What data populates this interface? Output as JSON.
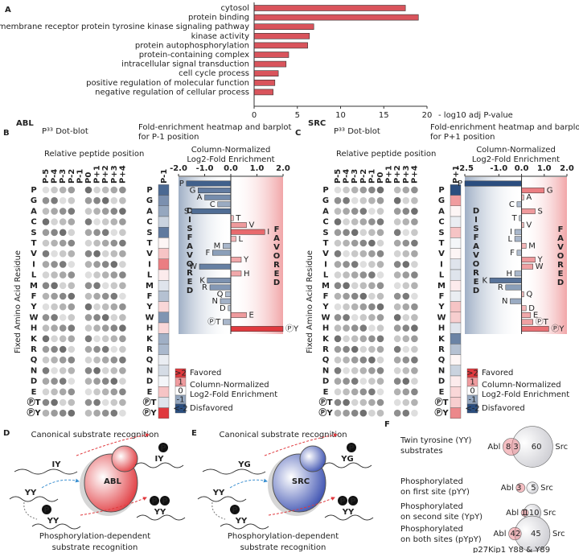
{
  "panel_labels": [
    "A",
    "B",
    "C",
    "D",
    "E",
    "F"
  ],
  "chart_data": [
    {
      "type": "bar",
      "orientation": "horizontal",
      "categories": [
        "cytosol",
        "protein binding",
        "transmembrane receptor protein tyrosine kinase signaling pathway",
        "kinase activity",
        "protein autophosphorylation",
        "protein-containing complex",
        "intracellular signal transduction",
        "cell cycle process",
        "positive regulation of molecular function",
        "negative regulation of cellular process"
      ],
      "values": [
        17.5,
        19.0,
        6.9,
        6.4,
        6.2,
        4.0,
        3.7,
        2.8,
        2.4,
        2.2
      ],
      "color": "#d9545c",
      "xlim": [
        0,
        20
      ],
      "xticks": [
        0,
        5,
        10,
        15,
        20
      ],
      "xlabel": "- log10 adj P-value"
    },
    {
      "type": "enrichment",
      "kinase": "ABL",
      "blot_title": "P³³ Dot-blot",
      "blot_xlabel": "Relative peptide position",
      "blot_ylabel": "Fixed Amino Acid Residue",
      "positions": [
        "P-5",
        "P-4",
        "P-3",
        "P-2",
        "P-1",
        "P0",
        "P+1",
        "P+2",
        "P+3",
        "P+4"
      ],
      "heatmap_title": [
        "Fold-enrichment heatmap and barplot",
        "for P-1 position"
      ],
      "heatmap_column": "P-1",
      "xlabel": [
        "Column-Normalized",
        "Log2-Fold Enrichment"
      ],
      "categories": [
        "P",
        "G",
        "A",
        "C",
        "S",
        "T",
        "V",
        "I",
        "L",
        "M",
        "F",
        "Y",
        "W",
        "H",
        "K",
        "R",
        "Q",
        "N",
        "D",
        "E",
        "ⓅT",
        "ⓅY"
      ],
      "values": [
        -1.7,
        -1.25,
        -1.0,
        -0.5,
        -1.5,
        0.1,
        0.6,
        1.3,
        0.2,
        -0.3,
        -0.7,
        0.4,
        -1.2,
        0.4,
        -0.9,
        -0.8,
        -0.2,
        -0.4,
        -0.1,
        0.6,
        -0.3,
        2.0
      ],
      "xlim": [
        -2,
        2
      ],
      "xticks": [
        {
          "value": -2,
          "label": "-2.0"
        },
        {
          "value": -1,
          "label": "-1.0"
        },
        {
          "value": 0,
          "label": "0.0"
        },
        {
          "value": 1,
          "label": "1.0"
        },
        {
          "value": 2,
          "label": "2.0"
        }
      ],
      "disfavored_label": "DISFAVORED",
      "favored_label": "FAVORED",
      "favored_color": "#e0393e",
      "disfavored_color": "#2b4e7f",
      "legend_keys": [
        {
          "value": 2,
          "label": ">2"
        },
        1,
        0,
        -1,
        {
          "value": -2,
          "label": "<-2"
        }
      ],
      "legend_labels": [
        "Favored",
        "Column-Normalized",
        "Log2-Fold Enrichment",
        "Disfavored"
      ]
    },
    {
      "type": "enrichment",
      "kinase": "SRC",
      "blot_title": "P³³ Dot-blot",
      "blot_xlabel": "Relative peptide position",
      "blot_ylabel": "Fixed Amino Acid Residue",
      "positions": [
        "P-5",
        "P-4",
        "P-3",
        "P-2",
        "P-1",
        "P0",
        "P+1",
        "P+2",
        "P+3",
        "P+4"
      ],
      "heatmap_title": [
        "Fold-enrichment heatmap and barplot",
        "for P+1 position"
      ],
      "heatmap_column": "P+1",
      "xlabel": [
        "Column-Normalized",
        "Log2-Fold Enrichment"
      ],
      "categories": [
        "P",
        "G",
        "A",
        "C",
        "S",
        "T",
        "V",
        "I",
        "L",
        "M",
        "F",
        "Y",
        "W",
        "H",
        "K",
        "R",
        "Q",
        "N",
        "D",
        "E",
        "ⓅT",
        "ⓅY"
      ],
      "values": [
        -2.5,
        1.0,
        0.1,
        -0.2,
        0.6,
        -0.1,
        0.1,
        -0.3,
        -0.3,
        0.2,
        -0.2,
        0.6,
        0.5,
        -0.3,
        -1.4,
        -0.7,
        0.1,
        -0.5,
        0.2,
        0.4,
        0.5,
        1.2
      ],
      "xlim": [
        -2.5,
        2
      ],
      "xticks": [
        -2.5,
        {
          "value": -1,
          "label": "-1.0"
        },
        {
          "value": 0,
          "label": "0.0"
        },
        {
          "value": 1,
          "label": "1.0"
        },
        {
          "value": 2,
          "label": "2.0"
        }
      ],
      "disfavored_label": "DISFAVORED",
      "favored_label": "FAVORED",
      "favored_color": "#e0393e",
      "disfavored_color": "#2b4e7f",
      "legend_keys": [
        {
          "value": 2,
          "label": ">2"
        },
        1,
        0,
        -1,
        {
          "value": -2,
          "label": "<-2"
        }
      ],
      "legend_labels": [
        "Favored",
        "Column-Normalized",
        "Log2-Fold Enrichment",
        "Disfavored"
      ]
    }
  ],
  "diagrams": [
    {
      "title": "Canonical substrate recognition",
      "bottom": [
        "Phosphorylation-dependent",
        "substrate recognition"
      ],
      "kinase": "ABL",
      "substrate": "IY",
      "twin": "YY",
      "phospho_mark": "P",
      "color": "#e0393e"
    },
    {
      "title": "Canonical substrate recognition",
      "bottom": [
        "Phosphorylation-dependent",
        "substrate recognition"
      ],
      "kinase": "SRC",
      "substrate": "YG",
      "twin": "YY",
      "phospho_mark": "P",
      "color": "#3a4fb0"
    }
  ],
  "venn": {
    "left_name": "Abl",
    "right_name": "Src",
    "footnote": "p27Kip1 Y88 & Y89",
    "rows": [
      {
        "label": [
          "Twin tyrosine (YY)",
          "substrates"
        ],
        "left": 8,
        "overlap": 3,
        "right": 60
      },
      {
        "label": [
          "Phosphorylated",
          "on first site (pYY)"
        ],
        "left": 3,
        "overlap": 0,
        "right": 5
      },
      {
        "label": [
          "Phosphorylated",
          "on second site (YpY)"
        ],
        "left": 1,
        "overlap": 1,
        "right": 10
      },
      {
        "label": [
          "Phosphorylated",
          "on both sites (pYpY)"
        ],
        "left": 4,
        "overlap": 2,
        "right": 45
      }
    ]
  }
}
